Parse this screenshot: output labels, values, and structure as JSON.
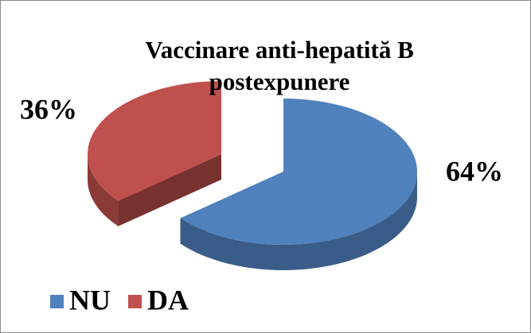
{
  "chart_data": {
    "type": "pie",
    "title": "Vaccinare anti-hepatită B postexpunere",
    "categories": [
      "NU",
      "DA"
    ],
    "values": [
      64,
      36
    ],
    "value_labels": [
      "64%",
      "36%"
    ],
    "colors": [
      "#4f81bd",
      "#c0504d"
    ],
    "legend": "bottom-left"
  }
}
